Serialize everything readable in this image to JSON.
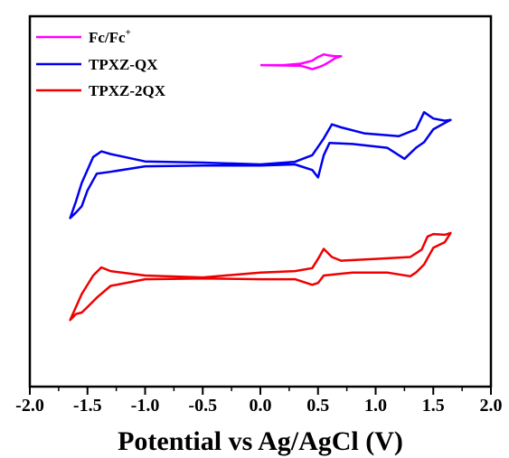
{
  "chart_data": {
    "type": "line",
    "xlabel": "Potential vs Ag/AgCl (V)",
    "ylabel": "",
    "xlim": [
      -2.0,
      2.0
    ],
    "xticks": [
      "-2.0",
      "-1.5",
      "-1.0",
      "-0.5",
      "0.0",
      "0.5",
      "1.0",
      "1.5",
      "2.0"
    ],
    "y_ticks_shown": false,
    "grid": false,
    "legend": "top-left",
    "legend_entries": [
      {
        "name": "Fc/Fc+",
        "color": "#ff00ff"
      },
      {
        "name": "TPXZ-QX",
        "color": "#0000ee"
      },
      {
        "name": "TPXZ-2QX",
        "color": "#ee0000"
      }
    ],
    "series": [
      {
        "name": "Fc/Fc+",
        "color": "#ff00ff",
        "x": [
          0.0,
          0.2,
          0.35,
          0.45,
          0.5,
          0.55,
          0.6,
          0.65,
          0.7,
          0.65,
          0.6,
          0.55,
          0.5,
          0.45,
          0.4,
          0.35,
          0.2,
          0.0
        ],
        "y": [
          0.868,
          0.868,
          0.872,
          0.88,
          0.89,
          0.897,
          0.894,
          0.892,
          0.892,
          0.887,
          0.877,
          0.868,
          0.862,
          0.857,
          0.862,
          0.866,
          0.867,
          0.868
        ]
      },
      {
        "name": "TPXZ-QX",
        "color": "#0000ee",
        "x": [
          0.0,
          0.3,
          0.45,
          0.55,
          0.62,
          0.7,
          0.9,
          1.2,
          1.35,
          1.42,
          1.5,
          1.6,
          1.65,
          1.6,
          1.5,
          1.42,
          1.35,
          1.3,
          1.25,
          1.1,
          0.8,
          0.6,
          0.55,
          0.5,
          0.45,
          0.3,
          0.0,
          -0.5,
          -1.0,
          -1.3,
          -1.42,
          -1.5,
          -1.55,
          -1.6,
          -1.65,
          -1.6,
          -1.55,
          -1.45,
          -1.38,
          -1.3,
          -1.0,
          -0.5,
          0.0
        ],
        "y": [
          0.6,
          0.607,
          0.625,
          0.67,
          0.708,
          0.7,
          0.684,
          0.676,
          0.695,
          0.741,
          0.724,
          0.718,
          0.72,
          0.712,
          0.695,
          0.66,
          0.645,
          0.63,
          0.615,
          0.645,
          0.655,
          0.658,
          0.625,
          0.565,
          0.585,
          0.6,
          0.597,
          0.597,
          0.595,
          0.58,
          0.575,
          0.53,
          0.487,
          0.47,
          0.455,
          0.5,
          0.55,
          0.62,
          0.635,
          0.628,
          0.608,
          0.605,
          0.6
        ]
      },
      {
        "name": "TPXZ-2QX",
        "color": "#ee0000",
        "x": [
          0.0,
          0.3,
          0.45,
          0.5,
          0.55,
          0.62,
          0.7,
          1.0,
          1.3,
          1.4,
          1.45,
          1.5,
          1.6,
          1.65,
          1.6,
          1.5,
          1.42,
          1.35,
          1.3,
          1.1,
          0.8,
          0.55,
          0.5,
          0.45,
          0.3,
          0.0,
          -0.5,
          -1.0,
          -1.3,
          -1.42,
          -1.5,
          -1.55,
          -1.6,
          -1.65,
          -1.6,
          -1.55,
          -1.45,
          -1.38,
          -1.3,
          -1.0,
          -0.5,
          0.0
        ],
        "y": [
          0.308,
          0.312,
          0.32,
          0.345,
          0.372,
          0.35,
          0.34,
          0.345,
          0.35,
          0.37,
          0.405,
          0.412,
          0.41,
          0.415,
          0.39,
          0.375,
          0.33,
          0.308,
          0.298,
          0.308,
          0.308,
          0.3,
          0.28,
          0.275,
          0.29,
          0.29,
          0.292,
          0.29,
          0.272,
          0.24,
          0.215,
          0.2,
          0.196,
          0.18,
          0.215,
          0.25,
          0.3,
          0.322,
          0.312,
          0.3,
          0.295,
          0.308
        ]
      }
    ]
  },
  "legend": {
    "fc_label": "Fc/Fc",
    "fc_superscript": "+",
    "qx_label": "TPXZ-QX",
    "qx2_label": "TPXZ-2QX"
  }
}
